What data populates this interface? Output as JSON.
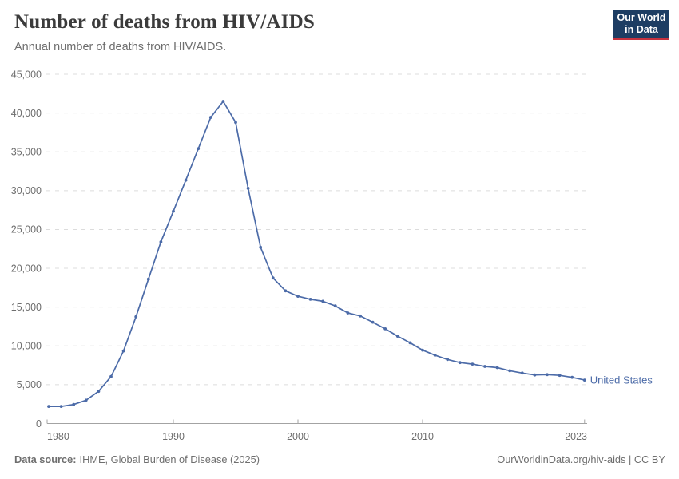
{
  "logo": {
    "line1": "Our World",
    "line2": "in Data"
  },
  "chart_data": {
    "type": "line",
    "title": "Number of deaths from HIV/AIDS",
    "subtitle": "Annual number of deaths from HIV/AIDS.",
    "xlabel": "",
    "ylabel": "",
    "entity": "United States",
    "ylim": [
      0,
      45000
    ],
    "yticks": [
      0,
      5000,
      10000,
      15000,
      20000,
      25000,
      30000,
      35000,
      40000,
      45000
    ],
    "ytick_labels": [
      "0",
      "5,000",
      "10,000",
      "15,000",
      "20,000",
      "25,000",
      "30,000",
      "35,000",
      "40,000",
      "45,000"
    ],
    "xticks": [
      1980,
      1990,
      2000,
      2010,
      2023
    ],
    "xtick_labels": [
      "1980",
      "1990",
      "2000",
      "2010",
      "2023"
    ],
    "grid": "horizontal-dashed",
    "legend_position": "end-of-line",
    "x": [
      1980,
      1981,
      1982,
      1983,
      1984,
      1985,
      1986,
      1987,
      1988,
      1989,
      1990,
      1991,
      1992,
      1993,
      1994,
      1995,
      1996,
      1997,
      1998,
      1999,
      2000,
      2001,
      2002,
      2003,
      2004,
      2005,
      2006,
      2007,
      2008,
      2009,
      2010,
      2011,
      2012,
      2013,
      2014,
      2015,
      2016,
      2017,
      2018,
      2019,
      2020,
      2021,
      2022,
      2023
    ],
    "series": [
      {
        "name": "United States",
        "color": "#4c6ba8",
        "values": [
          2200,
          2200,
          2450,
          3000,
          4150,
          6050,
          9350,
          13750,
          18600,
          23400,
          27350,
          31350,
          35400,
          39450,
          41500,
          38800,
          30300,
          22700,
          18750,
          17100,
          16400,
          16000,
          15750,
          15150,
          14250,
          13850,
          13050,
          12200,
          11250,
          10400,
          9450,
          8800,
          8250,
          7850,
          7650,
          7350,
          7200,
          6800,
          6500,
          6250,
          6300,
          6200,
          5950,
          5600
        ]
      }
    ]
  },
  "footer": {
    "source_label": "Data source:",
    "source_value": "IHME, Global Burden of Disease (2025)",
    "url": "OurWorldinData.org/hiv-aids",
    "separator": " | ",
    "license": "CC BY"
  },
  "colors": {
    "line": "#4c6ba8",
    "logo_bg": "#1d3d63",
    "logo_bar": "#c5323f",
    "title": "#3b3b3b",
    "muted": "#6e6e6e",
    "grid": "#dcdcdc",
    "axis": "#a3a3a3"
  }
}
